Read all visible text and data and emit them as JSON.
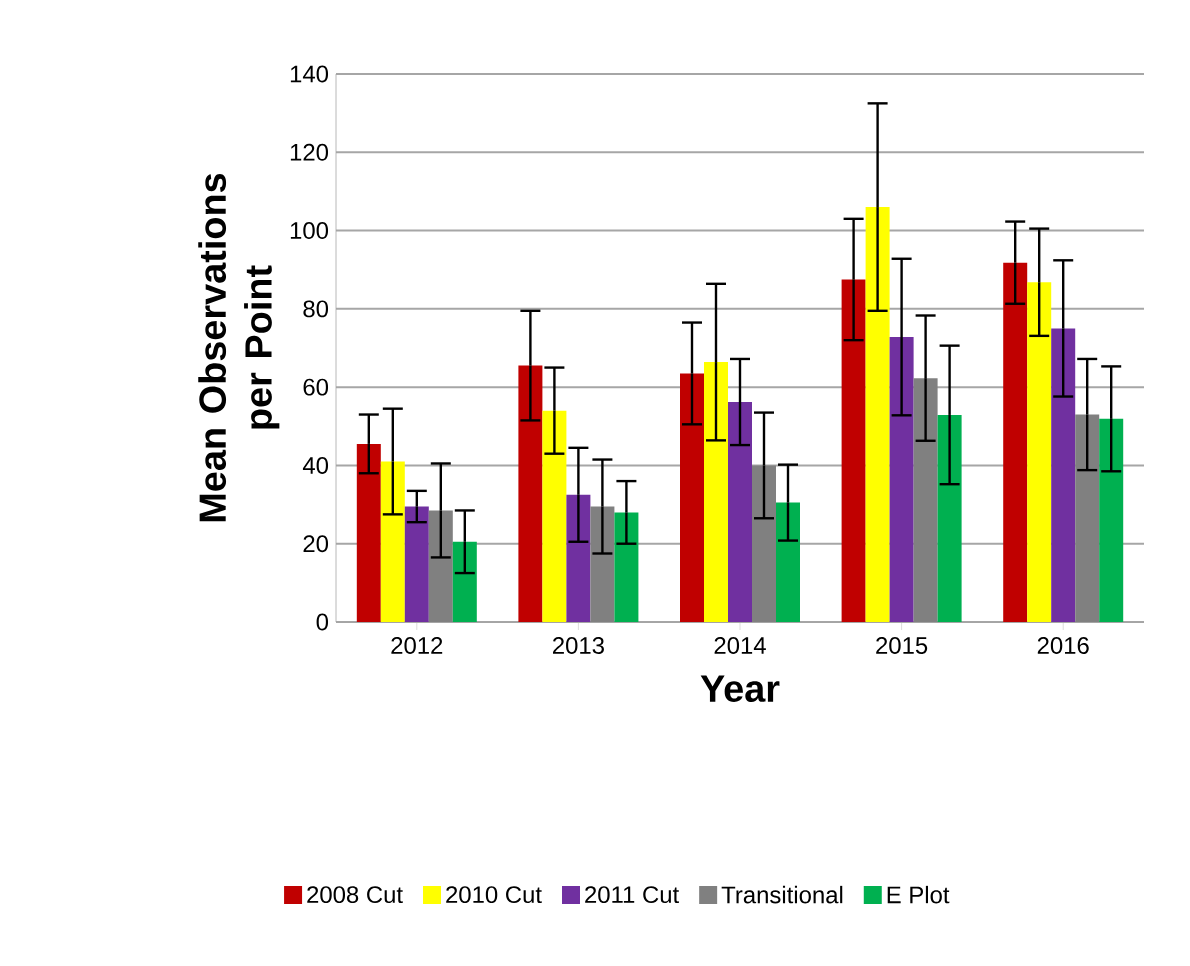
{
  "chart_data": {
    "type": "bar",
    "xlabel": "Year",
    "ylabel": "Mean Observations per Point",
    "categories": [
      "2012",
      "2013",
      "2014",
      "2015",
      "2016"
    ],
    "series": [
      {
        "name": "2008 Cut",
        "color": "#c00000",
        "values": [
          45.5,
          65.5,
          63.5,
          87.5,
          91.8
        ],
        "errors": [
          7.5,
          14,
          13,
          15.5,
          10.5
        ]
      },
      {
        "name": "2010 Cut",
        "color": "#ffff00",
        "values": [
          41,
          54,
          66.4,
          106,
          86.8
        ],
        "errors": [
          13.5,
          11,
          20,
          26.5,
          13.7
        ]
      },
      {
        "name": "2011 Cut",
        "color": "#7030a0",
        "values": [
          29.5,
          32.5,
          56.2,
          72.8,
          75
        ],
        "errors": [
          4,
          12,
          11,
          20,
          17.4
        ]
      },
      {
        "name": "Transitional",
        "color": "#808080",
        "values": [
          28.5,
          29.5,
          40,
          62.3,
          53
        ],
        "errors": [
          12,
          12,
          13.5,
          16,
          14.2
        ]
      },
      {
        "name": "E Plot",
        "color": "#00b050",
        "values": [
          20.5,
          28,
          30.5,
          52.9,
          51.9
        ],
        "errors": [
          8,
          8,
          9.7,
          17.7,
          13.4
        ]
      }
    ],
    "ylim": [
      0,
      140
    ],
    "yticks": [
      0,
      20,
      40,
      60,
      80,
      100,
      120,
      140
    ],
    "grid": "y",
    "legend": "bottom"
  }
}
